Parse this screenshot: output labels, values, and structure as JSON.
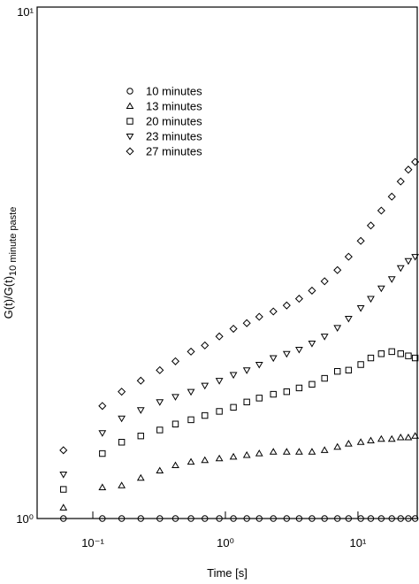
{
  "chart_data": {
    "type": "scatter",
    "xlabel": "Time [s]",
    "ylabel": "G(t)/G(t)",
    "ylabel_subscript": "10 minute paste",
    "xscale": "log",
    "yscale": "log",
    "xlim": [
      0.038,
      28
    ],
    "ylim": [
      1,
      10
    ],
    "xticks": [
      {
        "value": 0.1,
        "label": "10⁻¹"
      },
      {
        "value": 1,
        "label": "10⁰"
      },
      {
        "value": 10,
        "label": "10¹"
      }
    ],
    "yticks": [
      {
        "value": 1,
        "label": "10⁰"
      },
      {
        "value": 10,
        "label": "10¹"
      }
    ],
    "legend": "upper left",
    "x": [
      0.06,
      0.118,
      0.165,
      0.23,
      0.32,
      0.42,
      0.55,
      0.7,
      0.9,
      1.15,
      1.45,
      1.8,
      2.3,
      2.9,
      3.6,
      4.5,
      5.6,
      7,
      8.5,
      10.5,
      12.5,
      15,
      18,
      21,
      24,
      27
    ],
    "series": [
      {
        "name": "10 minutes",
        "marker": "circle",
        "color": "#000000",
        "values": [
          1,
          1,
          1,
          1,
          1,
          1,
          1,
          1,
          1,
          1,
          1,
          1,
          1,
          1,
          1,
          1,
          1,
          1,
          1,
          1,
          1,
          1,
          1,
          1,
          1,
          1
        ]
      },
      {
        "name": "13 minutes",
        "marker": "triangle-up",
        "color": "#000000",
        "values": [
          1.05,
          1.15,
          1.16,
          1.2,
          1.24,
          1.27,
          1.29,
          1.3,
          1.31,
          1.32,
          1.33,
          1.34,
          1.35,
          1.35,
          1.35,
          1.35,
          1.36,
          1.38,
          1.4,
          1.41,
          1.42,
          1.43,
          1.43,
          1.44,
          1.44,
          1.45
        ]
      },
      {
        "name": "20 minutes",
        "marker": "square",
        "color": "#000000",
        "values": [
          1.14,
          1.34,
          1.41,
          1.45,
          1.49,
          1.53,
          1.56,
          1.59,
          1.62,
          1.65,
          1.69,
          1.72,
          1.75,
          1.77,
          1.8,
          1.83,
          1.88,
          1.94,
          1.95,
          2.0,
          2.06,
          2.1,
          2.12,
          2.1,
          2.08,
          2.06
        ]
      },
      {
        "name": "23 minutes",
        "marker": "triangle-down",
        "color": "#000000",
        "values": [
          1.22,
          1.47,
          1.57,
          1.63,
          1.69,
          1.73,
          1.77,
          1.82,
          1.86,
          1.91,
          1.95,
          2.0,
          2.06,
          2.1,
          2.14,
          2.2,
          2.27,
          2.36,
          2.46,
          2.58,
          2.69,
          2.82,
          2.94,
          3.09,
          3.19,
          3.25
        ]
      },
      {
        "name": "27 minutes",
        "marker": "diamond",
        "color": "#000000",
        "values": [
          1.36,
          1.66,
          1.77,
          1.86,
          1.95,
          2.03,
          2.12,
          2.18,
          2.27,
          2.35,
          2.41,
          2.48,
          2.54,
          2.61,
          2.69,
          2.79,
          2.91,
          3.06,
          3.25,
          3.49,
          3.74,
          4.0,
          4.26,
          4.56,
          4.81,
          4.98
        ]
      }
    ]
  }
}
